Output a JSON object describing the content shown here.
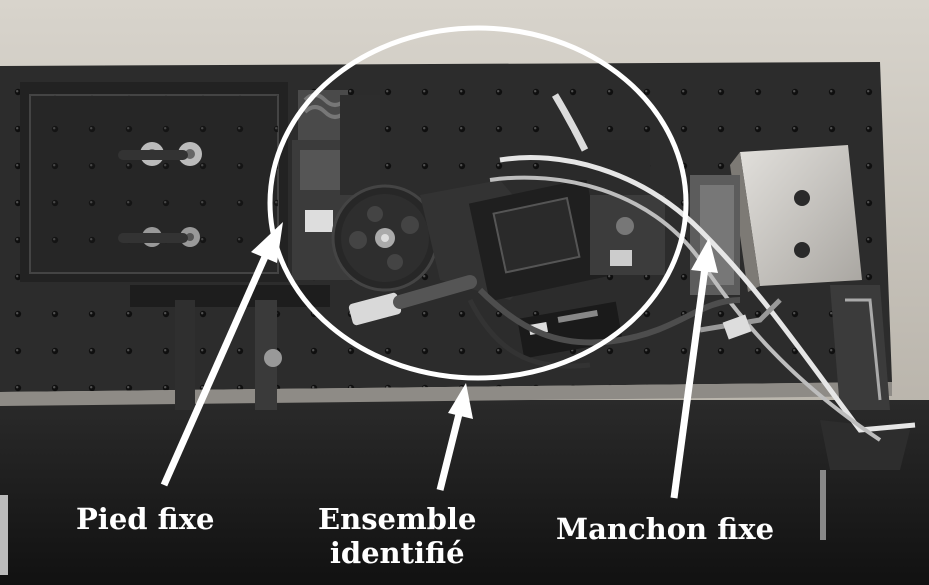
{
  "labels": {
    "pied_fixe": "Pied fixe",
    "ensemble_line1": "Ensemble",
    "ensemble_line2": "identifié",
    "manchon_fixe": "Manchon fixe"
  },
  "colors": {
    "annotation": "#ffffff",
    "breadboard": "#2b2b2b",
    "wood": "#c9c4bb"
  },
  "icons": {
    "arrow": "arrow-up-icon",
    "highlight": "ellipse-outline"
  }
}
